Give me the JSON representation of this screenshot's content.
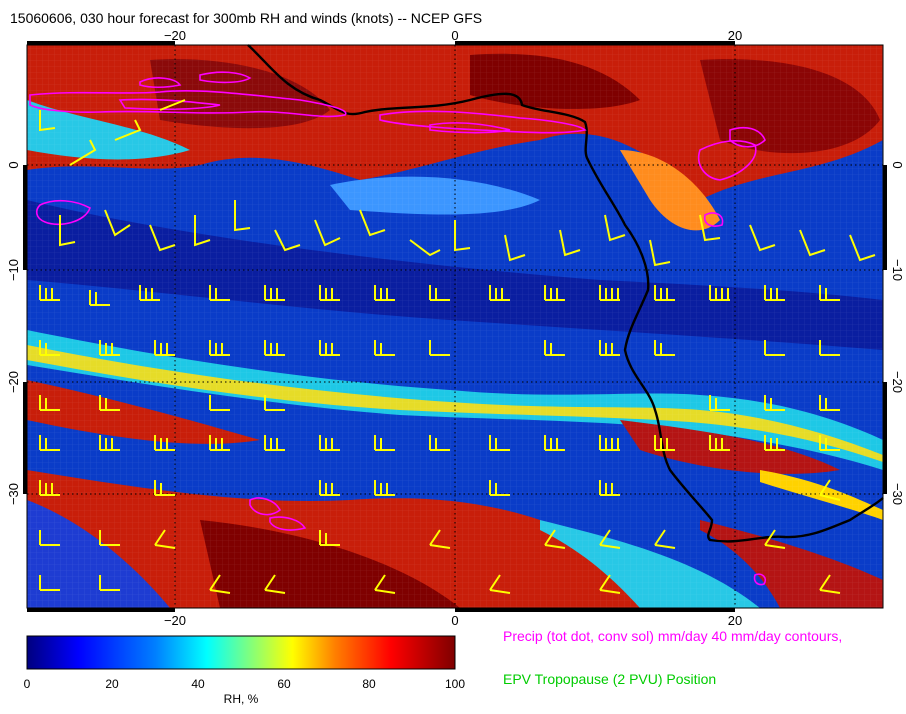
{
  "title": "15060606, 030 hour forecast for 300mb RH and winds (knots) -- NCEP GFS",
  "map": {
    "lon_ticks": [
      "−20",
      "0",
      "20"
    ],
    "lat_ticks": [
      "0",
      "−10",
      "−20",
      "−30"
    ],
    "lat_ticks_right": [
      "0",
      "−10",
      "−20",
      "−30"
    ],
    "overlay_colors": {
      "precip_contour": "#ff00ff",
      "coastline": "#000000",
      "wind_barbs": "#ffff00"
    }
  },
  "colorbar": {
    "ticks": [
      "0",
      "20",
      "40",
      "60",
      "80",
      "100"
    ],
    "label": "RH, %",
    "colors": [
      "#00007f",
      "#0000ff",
      "#007fff",
      "#00ffff",
      "#7fff7f",
      "#ffff00",
      "#ff7f00",
      "#ff0000",
      "#7f0000"
    ]
  },
  "legend": {
    "precip": "Precip (tot dot, conv sol) mm/day 40 mm/day contours,",
    "epv": "EPV Tropopause (2 PVU) Position"
  }
}
